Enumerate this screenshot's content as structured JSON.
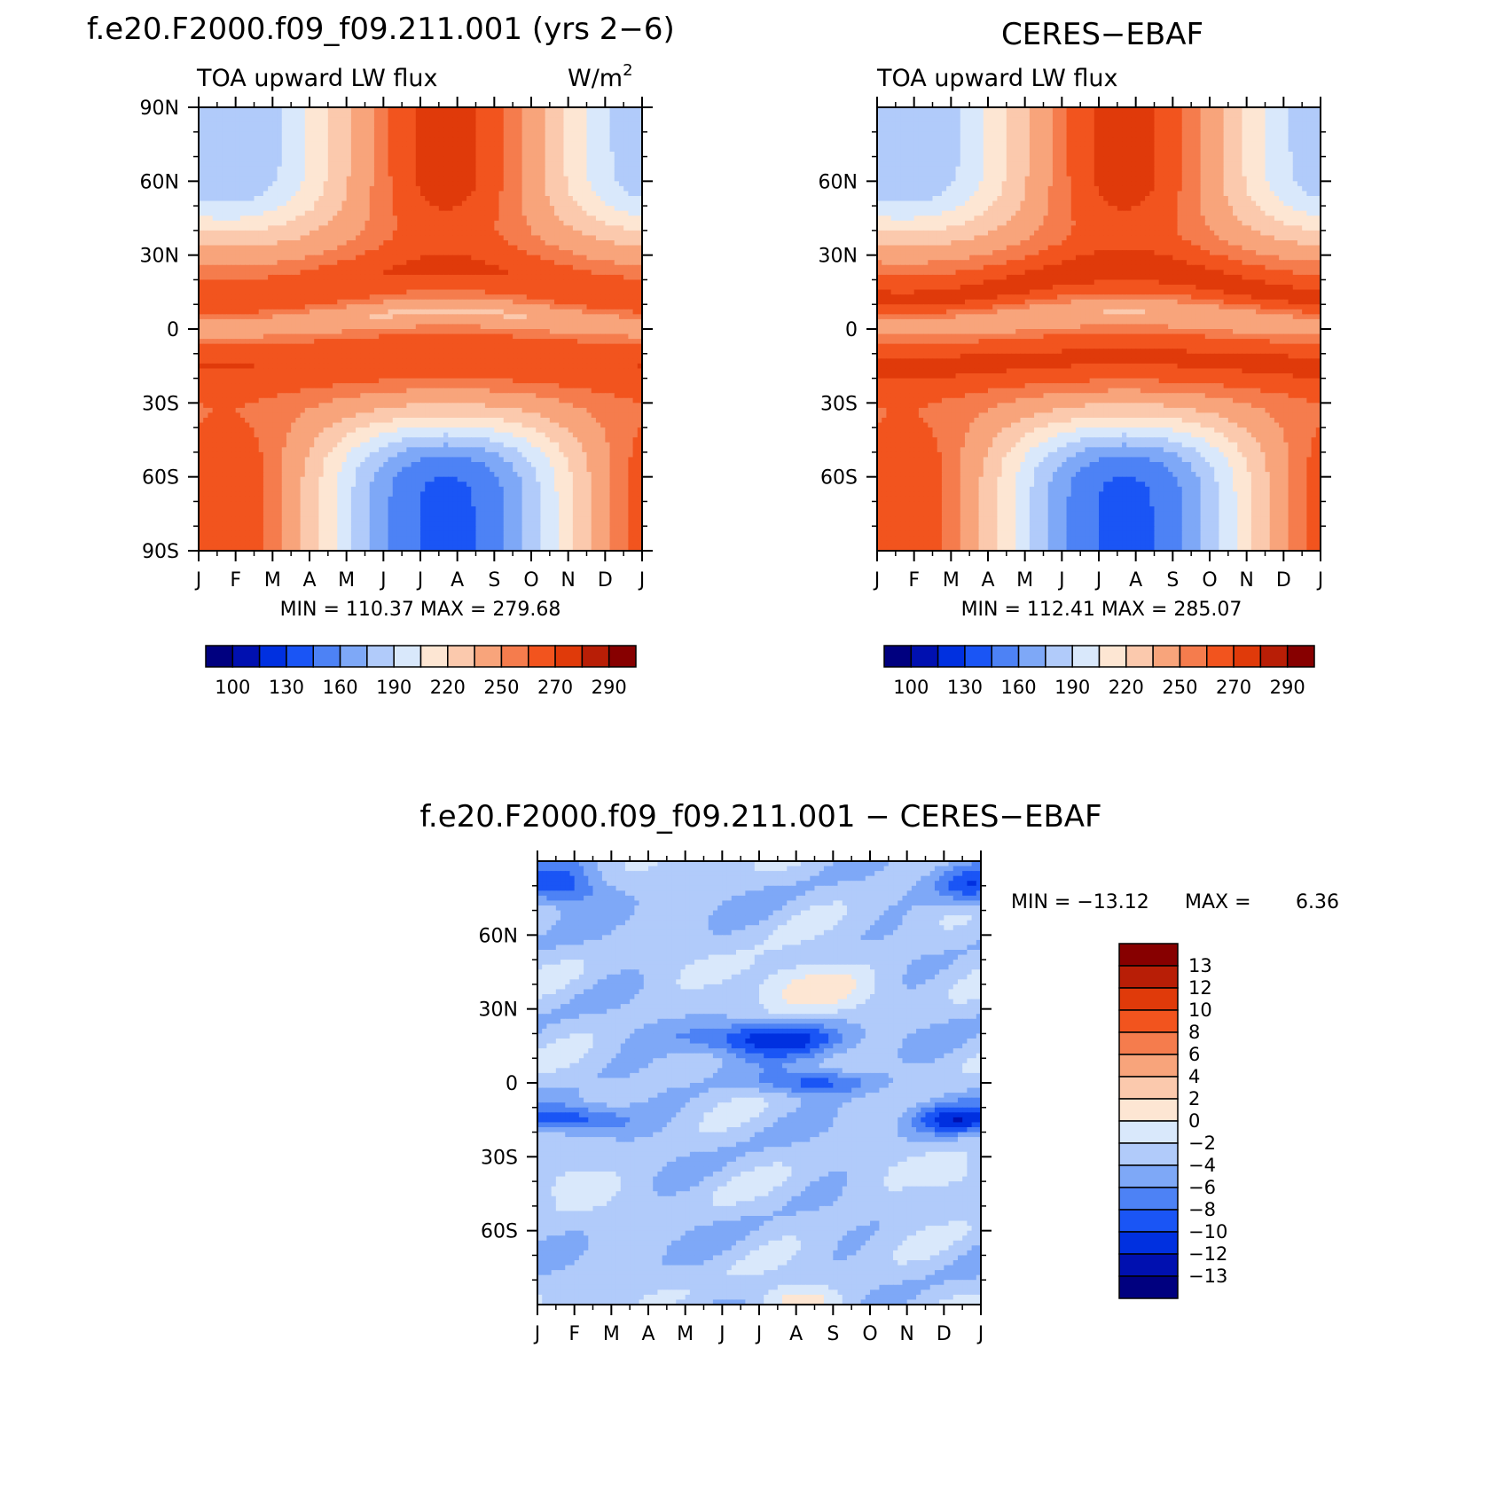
{
  "chart_data": [
    {
      "type": "heatmap",
      "title": "f.e20.F2000.f09_f09.211.001 (yrs 2−6)",
      "left_subtitle": "TOA upward LW flux",
      "right_subtitle_base": "W/m",
      "right_subtitle_sup": "2",
      "x_ticks": [
        "J",
        "F",
        "M",
        "A",
        "M",
        "J",
        "J",
        "A",
        "S",
        "O",
        "N",
        "D",
        "J"
      ],
      "y_ticks": [
        "90N",
        "60N",
        "30N",
        "0",
        "30S",
        "60S",
        "90S"
      ],
      "y_tick_values": [
        90,
        60,
        30,
        0,
        -30,
        -60,
        -90
      ],
      "ylim": [
        -90,
        90
      ],
      "min_max_text": "MIN = 110.37 MAX = 279.68",
      "colorbar_labels": [
        "100",
        "130",
        "160",
        "190",
        "220",
        "250",
        "270",
        "290"
      ],
      "field": "model",
      "extremes": {
        "min": 110.37,
        "max": 279.68
      }
    },
    {
      "type": "heatmap",
      "title": "CERES−EBAF",
      "left_subtitle": "TOA upward LW flux",
      "x_ticks": [
        "J",
        "F",
        "M",
        "A",
        "M",
        "J",
        "J",
        "A",
        "S",
        "O",
        "N",
        "D",
        "J"
      ],
      "y_ticks": [
        "60N",
        "30N",
        "0",
        "30S",
        "60S"
      ],
      "y_tick_values": [
        60,
        30,
        0,
        -30,
        -60
      ],
      "ylim": [
        -90,
        90
      ],
      "min_max_text": "MIN = 112.41 MAX = 285.07",
      "colorbar_labels": [
        "100",
        "130",
        "160",
        "190",
        "220",
        "250",
        "270",
        "290"
      ],
      "field": "obs",
      "extremes": {
        "min": 112.41,
        "max": 285.07
      }
    },
    {
      "type": "heatmap",
      "title": "f.e20.F2000.f09_f09.211.001 − CERES−EBAF",
      "x_ticks": [
        "J",
        "F",
        "M",
        "A",
        "M",
        "J",
        "J",
        "A",
        "S",
        "O",
        "N",
        "D",
        "J"
      ],
      "y_ticks": [
        "60N",
        "30N",
        "0",
        "30S",
        "60S"
      ],
      "y_tick_values": [
        60,
        30,
        0,
        -30,
        -60
      ],
      "ylim": [
        -90,
        90
      ],
      "min_label": "MIN = −13.12",
      "max_label": "MAX =",
      "max_value": "6.36",
      "colorbar_labels": [
        "13",
        "12",
        "10",
        "8",
        "6",
        "4",
        "2",
        "0",
        "−2",
        "−4",
        "−6",
        "−8",
        "−10",
        "−12",
        "−13"
      ],
      "field": "diff",
      "extremes": {
        "min": -13.12,
        "max": 6.36
      }
    }
  ],
  "colors": {
    "flux_levels": [
      "#00007f",
      "#0010b0",
      "#0030e0",
      "#1a55f5",
      "#4d82f5",
      "#7ea8f7",
      "#b1cbfa",
      "#d9e8fb",
      "#fde6d3",
      "#fbc9ad",
      "#f8a47b",
      "#f57c4d",
      "#f2541e",
      "#e03a0a",
      "#b81e06",
      "#870000"
    ],
    "diff_levels": [
      "#870000",
      "#b81e06",
      "#e03a0a",
      "#f2541e",
      "#f57c4d",
      "#f8a47b",
      "#fbc9ad",
      "#fde6d3",
      "#d9e8fb",
      "#b1cbfa",
      "#7ea8f7",
      "#4d82f5",
      "#1a55f5",
      "#0030e0",
      "#0010b0",
      "#00007f"
    ]
  }
}
